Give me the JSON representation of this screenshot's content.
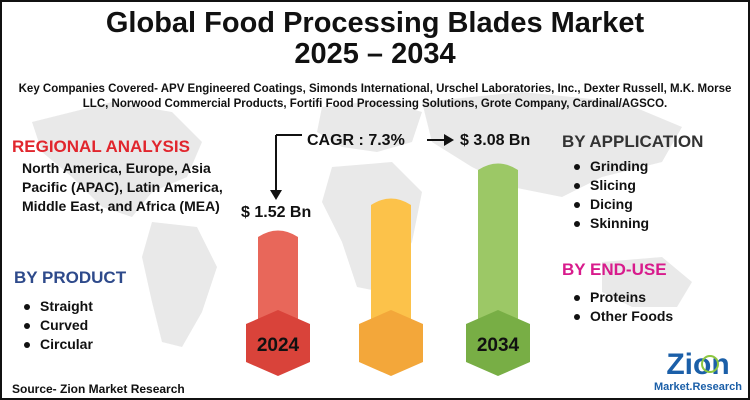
{
  "title_line1": "Global Food Processing Blades Market",
  "title_line2": "2025 – 2034",
  "companies": "Key Companies Covered- APV Engineered Coatings, Simonds International, Urschel Laboratories, Inc., Dexter Russell, M.K. Morse LLC, Norwood Commercial Products, Fortifi Food Processing Solutions, Grote Company, Cardinal/AGSCO.",
  "regional": {
    "heading": "REGIONAL ANALYSIS",
    "text": "North America, Europe, Asia Pacific (APAC), Latin America, Middle East, and Africa (MEA)"
  },
  "product": {
    "heading": "BY PRODUCT",
    "items": [
      "Straight",
      "Curved",
      "Circular"
    ]
  },
  "application": {
    "heading": "BY APPLICATION",
    "items": [
      "Grinding",
      "Slicing",
      "Dicing",
      "Skinning"
    ]
  },
  "enduse": {
    "heading": "BY END-USE",
    "items": [
      "Proteins",
      "Other Foods"
    ]
  },
  "chart": {
    "cagr": "CAGR : 7.3%",
    "start_value": "$ 1.52 Bn",
    "end_value": "$ 3.08 Bn",
    "start_year": "2024",
    "end_year": "2034",
    "colors": [
      "#e8675a",
      "#fcc24a",
      "#9cc866"
    ],
    "hex_colors": [
      "#d9433a",
      "#f3a73a",
      "#78ae45"
    ]
  },
  "source": "Source- Zion Market Research",
  "logo": {
    "name": "Zion",
    "sub": "Market.Research"
  }
}
